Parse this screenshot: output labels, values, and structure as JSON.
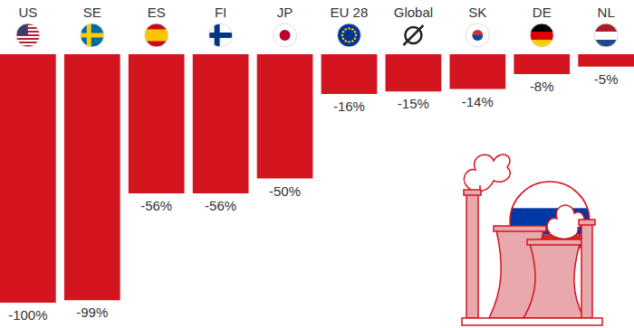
{
  "chart_data": {
    "type": "bar",
    "categories": [
      "US",
      "SE",
      "ES",
      "FI",
      "JP",
      "EU 28",
      "Global",
      "SK",
      "DE",
      "NL"
    ],
    "values": [
      -100,
      -99,
      -56,
      -56,
      -50,
      -16,
      -15,
      -14,
      -8,
      -5
    ],
    "value_labels": [
      "-100%",
      "-99%",
      "-56%",
      "-56%",
      "-50%",
      "-16%",
      "-15%",
      "-14%",
      "-8%",
      "-5%"
    ],
    "color": "#d3151f",
    "ylim": [
      -100,
      0
    ],
    "tick_labels": false,
    "data_labels": true
  }
}
